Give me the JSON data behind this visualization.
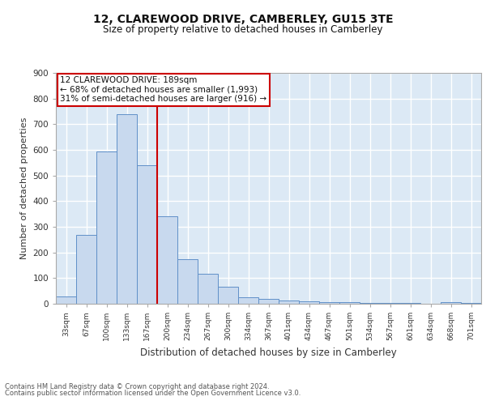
{
  "title1": "12, CLAREWOOD DRIVE, CAMBERLEY, GU15 3TE",
  "title2": "Size of property relative to detached houses in Camberley",
  "xlabel": "Distribution of detached houses by size in Camberley",
  "ylabel": "Number of detached properties",
  "bar_labels": [
    "33sqm",
    "67sqm",
    "100sqm",
    "133sqm",
    "167sqm",
    "200sqm",
    "234sqm",
    "267sqm",
    "300sqm",
    "334sqm",
    "367sqm",
    "401sqm",
    "434sqm",
    "467sqm",
    "501sqm",
    "534sqm",
    "567sqm",
    "601sqm",
    "634sqm",
    "668sqm",
    "701sqm"
  ],
  "bar_values": [
    28,
    270,
    595,
    738,
    540,
    342,
    175,
    118,
    67,
    25,
    20,
    12,
    8,
    5,
    7,
    3,
    2,
    2,
    0,
    5,
    2
  ],
  "bar_color": "#c8d9ee",
  "bar_edge_color": "#6090c8",
  "background_color": "#dce9f5",
  "grid_color": "#ffffff",
  "vline_color": "#cc0000",
  "vline_pos": 4.5,
  "annotation_text": "12 CLAREWOOD DRIVE: 189sqm\n← 68% of detached houses are smaller (1,993)\n31% of semi-detached houses are larger (916) →",
  "annotation_box_color": "#ffffff",
  "annotation_box_edge": "#cc0000",
  "ylim": [
    0,
    900
  ],
  "yticks": [
    0,
    100,
    200,
    300,
    400,
    500,
    600,
    700,
    800,
    900
  ],
  "footer1": "Contains HM Land Registry data © Crown copyright and database right 2024.",
  "footer2": "Contains public sector information licensed under the Open Government Licence v3.0."
}
